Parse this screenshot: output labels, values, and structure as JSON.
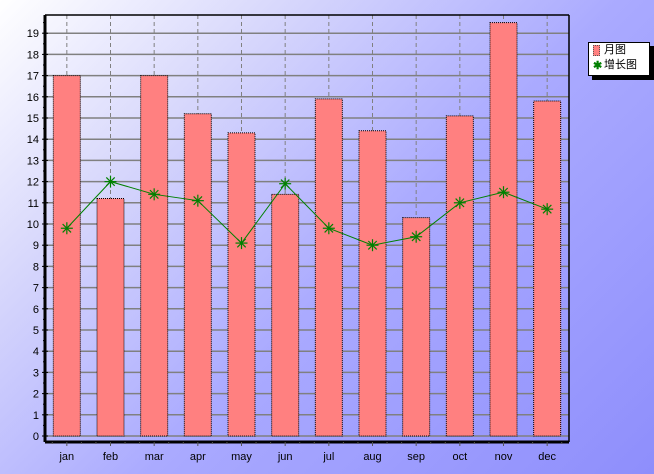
{
  "chart_data": {
    "type": "bar",
    "title": "",
    "xlabel": "",
    "ylabel": "",
    "categories": [
      "jan",
      "feb",
      "mar",
      "apr",
      "may",
      "jun",
      "jul",
      "aug",
      "sep",
      "oct",
      "nov",
      "dec"
    ],
    "series": [
      {
        "name": "月图",
        "type": "bar",
        "color": "#ff8080",
        "values": [
          17.0,
          11.2,
          17.0,
          15.2,
          14.3,
          11.4,
          15.9,
          14.4,
          10.3,
          15.1,
          19.5,
          15.8
        ]
      },
      {
        "name": "增长图",
        "type": "line",
        "color": "#008000",
        "marker": "asterisk",
        "values": [
          9.8,
          12.0,
          11.4,
          11.1,
          9.1,
          11.9,
          9.8,
          9.0,
          9.4,
          11.0,
          11.5,
          10.7
        ]
      }
    ],
    "yticks": [
      0,
      1,
      2,
      3,
      4,
      5,
      6,
      7,
      8,
      9,
      10,
      11,
      12,
      13,
      14,
      15,
      16,
      17,
      18,
      19
    ],
    "ylim": [
      0,
      19.9
    ],
    "grid": {
      "horizontal": true,
      "vertical_dashed": true
    },
    "legend_position": "right-top"
  },
  "legend": {
    "bar_label": "月图",
    "line_label": "增长图"
  }
}
